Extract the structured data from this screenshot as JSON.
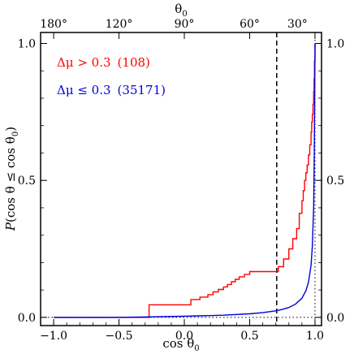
{
  "chart_data": {
    "type": "line",
    "xlabel": "cos θ",
    "xlabel_sub": "0",
    "ylabel_italic": "P",
    "ylabel_rest_a": "(cos θ ≤ cos θ",
    "ylabel_sub": "0",
    "ylabel_rest_b": ")",
    "top_axis_label": "θ",
    "top_axis_sub": "0",
    "xlim": [
      -1.1,
      1.05
    ],
    "ylim": [
      -0.03,
      1.04
    ],
    "x_ticks": [
      -1.0,
      -0.5,
      0.0,
      0.5,
      1.0
    ],
    "x_tick_labels": [
      "−1.0",
      "−0.5",
      "0.0",
      "0.5",
      "1.0"
    ],
    "y_ticks": [
      0.0,
      0.5,
      1.0
    ],
    "y_tick_labels": [
      "0.0",
      "0.5",
      "1.0"
    ],
    "top_ticks_deg": [
      180,
      120,
      90,
      60,
      30
    ],
    "top_tick_labels": [
      "180°",
      "120°",
      "90°",
      "60°",
      "30°"
    ],
    "threshold_x": 0.707,
    "reference_x": 1.0,
    "reference_y": 0.0,
    "series": [
      {
        "name": "Δμ > 0.3",
        "count": "(108)",
        "color": "#ff0000",
        "step": true,
        "x": [
          -1.0,
          -0.3,
          -0.27,
          0.05,
          0.12,
          0.18,
          0.22,
          0.26,
          0.3,
          0.33,
          0.36,
          0.39,
          0.42,
          0.46,
          0.5,
          0.55,
          0.6,
          0.65,
          0.72,
          0.76,
          0.8,
          0.83,
          0.86,
          0.88,
          0.9,
          0.91,
          0.92,
          0.93,
          0.94,
          0.95,
          0.96,
          0.97,
          0.975,
          0.98,
          0.985,
          0.99,
          0.993,
          0.996,
          1.0
        ],
        "y": [
          0.0,
          0.0,
          0.046,
          0.065,
          0.074,
          0.083,
          0.093,
          0.102,
          0.111,
          0.12,
          0.13,
          0.139,
          0.148,
          0.157,
          0.167,
          0.167,
          0.167,
          0.167,
          0.185,
          0.213,
          0.25,
          0.287,
          0.324,
          0.38,
          0.426,
          0.463,
          0.5,
          0.528,
          0.556,
          0.593,
          0.63,
          0.676,
          0.713,
          0.741,
          0.778,
          0.824,
          0.87,
          0.935,
          1.0
        ]
      },
      {
        "name": "Δμ ≤ 0.3",
        "count": "(35171)",
        "color": "#0000dd",
        "step": false,
        "x": [
          -1.0,
          -0.5,
          0.0,
          0.3,
          0.5,
          0.6,
          0.7,
          0.75,
          0.8,
          0.85,
          0.9,
          0.93,
          0.95,
          0.97,
          0.98,
          0.99,
          0.995,
          1.0
        ],
        "y": [
          0.0,
          0.0,
          0.004,
          0.008,
          0.013,
          0.017,
          0.024,
          0.029,
          0.036,
          0.048,
          0.07,
          0.097,
          0.128,
          0.19,
          0.26,
          0.4,
          0.6,
          1.0
        ]
      }
    ]
  }
}
